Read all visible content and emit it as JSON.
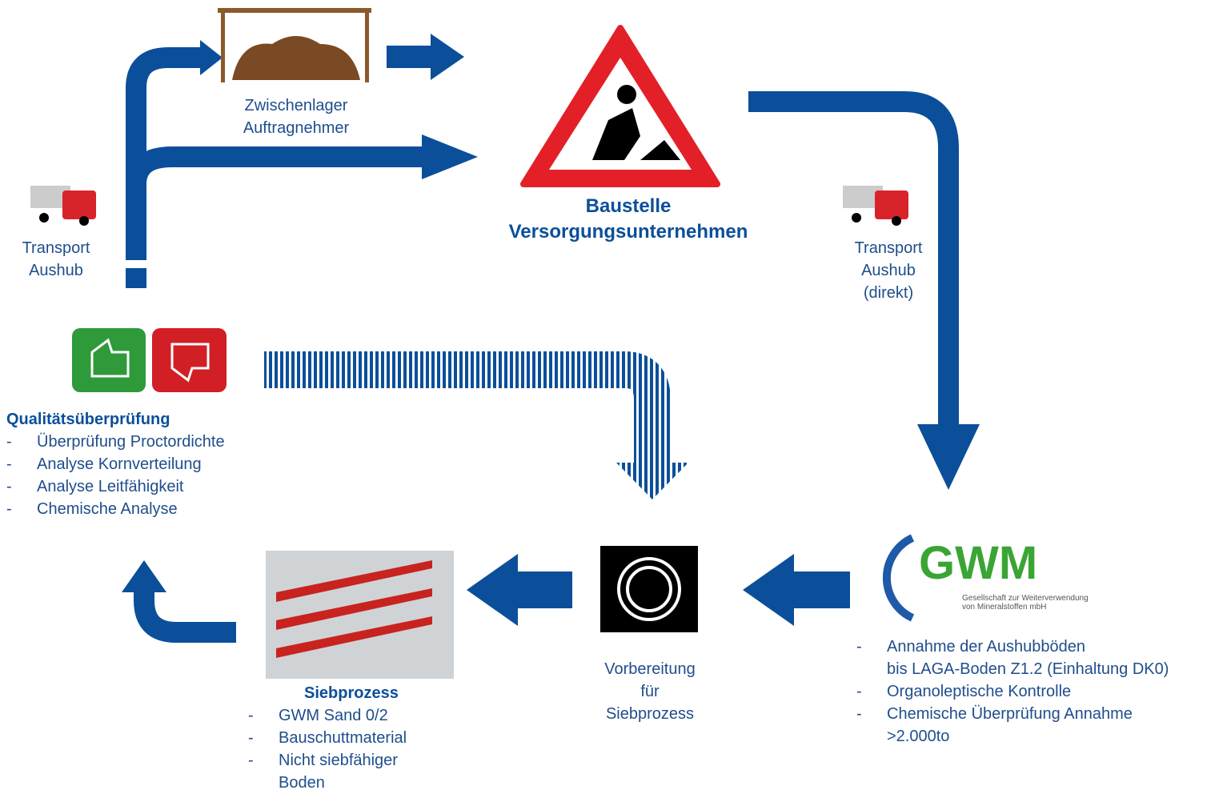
{
  "storage": {
    "lines": [
      "Zwischenlager",
      "Auftragnehmer"
    ]
  },
  "site": {
    "title": "Baustelle",
    "subtitle": "Versorgungsunternehmen"
  },
  "transport_left": {
    "lines": [
      "Transport",
      "Aushub"
    ]
  },
  "transport_right": {
    "lines": [
      "Transport",
      "Aushub",
      "(direkt)"
    ]
  },
  "bullet": "-",
  "quality": {
    "title": "Qualitätsüberprüfung",
    "items": [
      "Überprüfung Proctordichte",
      "Analyse Kornverteilung",
      "Analyse Leitfähigkeit",
      "Chemische Analyse"
    ]
  },
  "gwm": {
    "logo": "GWM",
    "tagline": [
      "Gesellschaft zur Weiterverwendung",
      "von Mineralstoffen mbH"
    ],
    "items": [
      [
        "Annahme der Aushubböden",
        "bis LAGA-Boden Z1.2 (Einhaltung DK0)"
      ],
      [
        "Organoleptische Kontrolle"
      ],
      [
        "Chemische Überprüfung Annahme",
        ">2.000to"
      ]
    ]
  },
  "preparation": {
    "lines": [
      "Vorbereitung",
      "für",
      "Siebprozess"
    ]
  },
  "sieve": {
    "title": "Siebprozess",
    "items": [
      [
        "GWM Sand 0/2"
      ],
      [
        "Bauschuttmaterial"
      ],
      [
        "Nicht siebfähiger",
        "Boden"
      ]
    ]
  }
}
